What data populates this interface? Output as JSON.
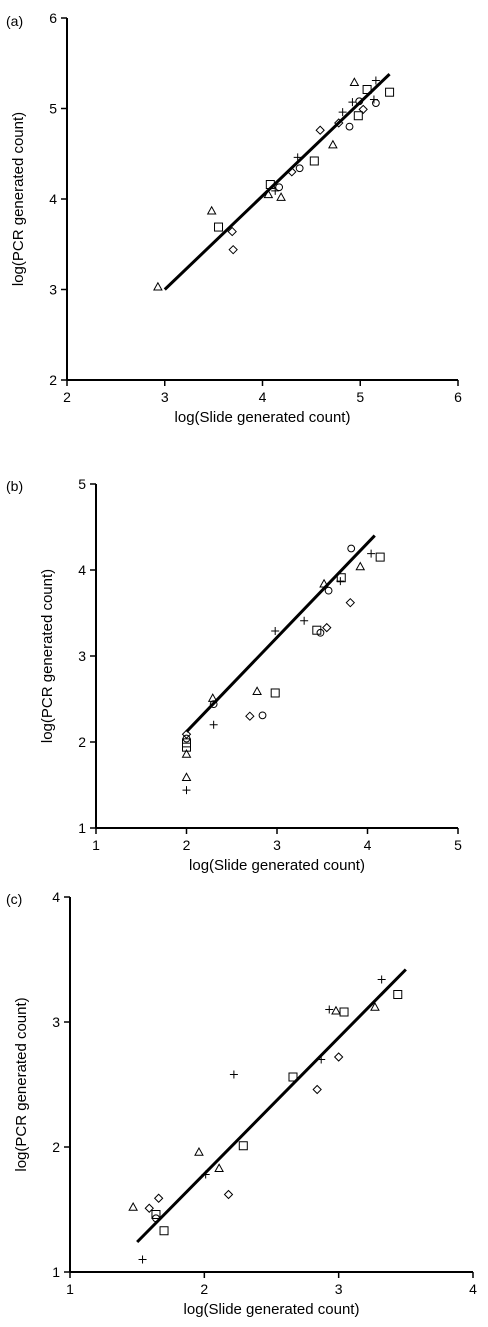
{
  "chart_data": [
    {
      "type": "scatter",
      "panel_label": "(a)",
      "xlabel": "log(Slide generated count)",
      "ylabel": "log(PCR generated count)",
      "xlim": [
        2,
        6
      ],
      "ylim": [
        2,
        6
      ],
      "xticks": [
        "2",
        "3",
        "4",
        "5",
        "6"
      ],
      "yticks": [
        "2",
        "3",
        "4",
        "5",
        "6"
      ],
      "fit_line": [
        [
          3.0,
          3.0
        ],
        [
          5.3,
          5.38
        ]
      ],
      "series": [
        {
          "marker": "triangle",
          "points": [
            [
              2.93,
              3.03
            ],
            [
              3.48,
              3.87
            ],
            [
              4.06,
              4.05
            ],
            [
              4.19,
              4.02
            ],
            [
              4.72,
              4.6
            ],
            [
              4.94,
              5.29
            ]
          ]
        },
        {
          "marker": "square",
          "points": [
            [
              3.55,
              3.69
            ],
            [
              4.08,
              4.16
            ],
            [
              4.53,
              4.42
            ],
            [
              4.98,
              4.92
            ],
            [
              5.07,
              5.21
            ],
            [
              5.3,
              5.18
            ]
          ]
        },
        {
          "marker": "diamond",
          "points": [
            [
              3.69,
              3.64
            ],
            [
              3.7,
              3.44
            ],
            [
              4.3,
              4.3
            ],
            [
              4.59,
              4.76
            ],
            [
              4.78,
              4.84
            ],
            [
              5.03,
              4.99
            ]
          ]
        },
        {
          "marker": "circle",
          "points": [
            [
              4.17,
              4.13
            ],
            [
              4.38,
              4.34
            ],
            [
              4.89,
              4.8
            ],
            [
              4.99,
              5.08
            ],
            [
              5.16,
              5.06
            ]
          ]
        },
        {
          "marker": "plus",
          "points": [
            [
              4.13,
              4.09
            ],
            [
              4.36,
              4.46
            ],
            [
              4.82,
              4.96
            ],
            [
              4.92,
              5.07
            ],
            [
              5.14,
              5.1
            ],
            [
              5.16,
              5.31
            ]
          ]
        }
      ]
    },
    {
      "type": "scatter",
      "panel_label": "(b)",
      "xlabel": "log(Slide generated count)",
      "ylabel": "log(PCR generated count)",
      "xlim": [
        1,
        5
      ],
      "ylim": [
        1,
        5
      ],
      "xticks": [
        "1",
        "2",
        "3",
        "4",
        "5"
      ],
      "yticks": [
        "1",
        "2",
        "3",
        "4",
        "5"
      ],
      "fit_line": [
        [
          2.0,
          2.12
        ],
        [
          4.08,
          4.4
        ]
      ],
      "series": [
        {
          "marker": "triangle",
          "points": [
            [
              2.0,
              1.86
            ],
            [
              2.0,
              1.59
            ],
            [
              2.29,
              2.51
            ],
            [
              2.78,
              2.59
            ],
            [
              3.52,
              3.84
            ],
            [
              3.92,
              4.04
            ]
          ]
        },
        {
          "marker": "square",
          "points": [
            [
              2.0,
              1.94
            ],
            [
              2.0,
              1.99
            ],
            [
              2.98,
              2.57
            ],
            [
              3.44,
              3.3
            ],
            [
              3.71,
              3.91
            ],
            [
              4.14,
              4.15
            ]
          ]
        },
        {
          "marker": "diamond",
          "points": [
            [
              2.0,
              2.09
            ],
            [
              2.7,
              2.3
            ],
            [
              3.55,
              3.33
            ],
            [
              3.81,
              3.62
            ]
          ]
        },
        {
          "marker": "circle",
          "points": [
            [
              2.0,
              2.04
            ],
            [
              2.3,
              2.44
            ],
            [
              2.84,
              2.31
            ],
            [
              3.48,
              3.27
            ],
            [
              3.57,
              3.76
            ],
            [
              3.82,
              4.25
            ]
          ]
        },
        {
          "marker": "plus",
          "points": [
            [
              2.0,
              1.44
            ],
            [
              2.3,
              2.2
            ],
            [
              2.98,
              3.29
            ],
            [
              3.3,
              3.41
            ],
            [
              3.7,
              3.87
            ],
            [
              4.04,
              4.19
            ]
          ]
        }
      ]
    },
    {
      "type": "scatter",
      "panel_label": "(c)",
      "xlabel": "log(Slide generated count)",
      "ylabel": "log(PCR generated count)",
      "xlim": [
        1,
        4
      ],
      "ylim": [
        1,
        4
      ],
      "xticks": [
        "1",
        "2",
        "3",
        "4"
      ],
      "yticks": [
        "1",
        "2",
        "3",
        "4"
      ],
      "fit_line": [
        [
          1.5,
          1.24
        ],
        [
          3.5,
          3.42
        ]
      ],
      "series": [
        {
          "marker": "triangle",
          "points": [
            [
              1.47,
              1.52
            ],
            [
              1.96,
              1.96
            ],
            [
              2.11,
              1.83
            ],
            [
              2.98,
              3.09
            ],
            [
              3.27,
              3.12
            ]
          ]
        },
        {
          "marker": "square",
          "points": [
            [
              1.64,
              1.46
            ],
            [
              1.7,
              1.33
            ],
            [
              2.29,
              2.01
            ],
            [
              2.66,
              2.56
            ],
            [
              3.04,
              3.08
            ],
            [
              3.44,
              3.22
            ]
          ]
        },
        {
          "marker": "diamond",
          "points": [
            [
              1.59,
              1.51
            ],
            [
              1.66,
              1.59
            ],
            [
              2.18,
              1.62
            ],
            [
              2.84,
              2.46
            ],
            [
              3.0,
              2.72
            ]
          ]
        },
        {
          "marker": "circle",
          "points": [
            [
              1.64,
              1.43
            ]
          ]
        },
        {
          "marker": "plus",
          "points": [
            [
              1.54,
              1.1
            ],
            [
              2.01,
              1.78
            ],
            [
              2.22,
              2.58
            ],
            [
              2.87,
              2.7
            ],
            [
              2.93,
              3.1
            ],
            [
              3.32,
              3.34
            ]
          ]
        }
      ]
    }
  ]
}
